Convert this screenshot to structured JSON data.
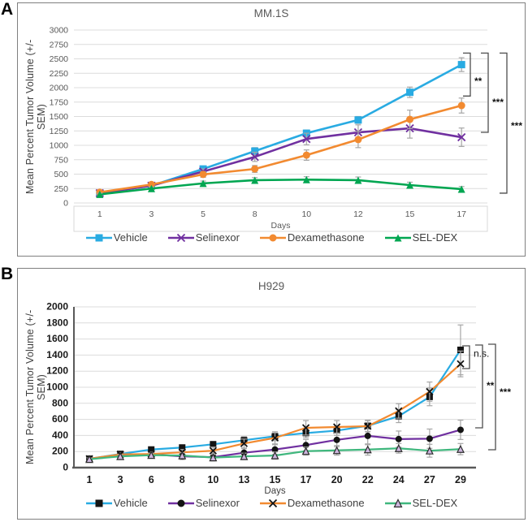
{
  "figure": {
    "panel_labels": [
      "A",
      "B"
    ]
  },
  "colors": {
    "vehicle_blue": "#29abe2",
    "selinexor_purple": "#7030a0",
    "dexamethasone_orange": "#f28a30",
    "seldex_green_a": "#00a651",
    "seldex_green_b": "#3fb77d",
    "black_marker": "#141414",
    "open_triangle_fill": "#cdb6de",
    "gridline": "#dcdcdc",
    "axis_dark": "#595959",
    "error_bar": "#a6a6a6",
    "bracket": "#4d4d4d"
  },
  "chart_data": [
    {
      "type": "line",
      "panel_label": "A",
      "title": "MM.1S",
      "xlabel": "Days",
      "ylabel": "Mean Percent Tumor Volume (+/- SEM)",
      "x_categories": [
        1,
        3,
        5,
        8,
        10,
        12,
        15,
        17
      ],
      "ylim": [
        0,
        3000
      ],
      "ytick_step": 250,
      "grid": true,
      "legend_position": "bottom",
      "series": [
        {
          "name": "Vehicle",
          "line_color": "#29abe2",
          "marker": "square",
          "marker_color": "#29abe2",
          "values": [
            170,
            300,
            590,
            900,
            1210,
            1440,
            1920,
            2400
          ],
          "sem": [
            25,
            25,
            45,
            60,
            55,
            60,
            90,
            120
          ]
        },
        {
          "name": "Selinexor",
          "line_color": "#7030a0",
          "marker": "x",
          "marker_color": "#7030a0",
          "values": [
            170,
            300,
            545,
            800,
            1110,
            1225,
            1295,
            1140
          ],
          "sem": [
            25,
            25,
            45,
            80,
            100,
            130,
            170,
            160
          ]
        },
        {
          "name": "Dexamethasone",
          "line_color": "#f28a30",
          "marker": "circle",
          "marker_color": "#f28a30",
          "values": [
            185,
            320,
            495,
            590,
            830,
            1100,
            1450,
            1690
          ],
          "sem": [
            25,
            25,
            50,
            60,
            90,
            140,
            160,
            130
          ]
        },
        {
          "name": "SEL-DEX",
          "line_color": "#00a651",
          "marker": "triangle",
          "marker_color": "#00a651",
          "values": [
            150,
            250,
            340,
            395,
            405,
            395,
            310,
            240
          ],
          "sem": [
            20,
            25,
            40,
            45,
            50,
            55,
            50,
            45
          ]
        }
      ],
      "significance": [
        {
          "label": "**",
          "between": [
            "Vehicle",
            "Dexamethasone"
          ],
          "bracket_x": 557,
          "top_value": 2600,
          "bottom_value": 1855,
          "label_value": 2110
        },
        {
          "label": "***",
          "between": [
            "Vehicle",
            "Selinexor"
          ],
          "bracket_x": 579,
          "top_value": 2600,
          "bottom_value": 1225,
          "label_value": 1745
        },
        {
          "label": "***",
          "between": [
            "Vehicle",
            "SEL-DEX"
          ],
          "bracket_x": 602,
          "top_value": 2600,
          "bottom_value": 170,
          "label_value": 1340
        }
      ]
    },
    {
      "type": "line",
      "panel_label": "B",
      "title": "H929",
      "xlabel": "Days",
      "ylabel": "Mean Percent Tumor Volume (+/- SEM)",
      "x_categories": [
        1,
        3,
        6,
        8,
        10,
        13,
        15,
        17,
        20,
        22,
        24,
        27,
        29
      ],
      "ylim": [
        0,
        2000
      ],
      "ytick_step": 200,
      "grid": true,
      "legend_position": "bottom",
      "series": [
        {
          "name": "Vehicle",
          "line_color": "#29abe2",
          "marker": "square",
          "marker_color": "#141414",
          "values": [
            110,
            170,
            225,
            250,
            290,
            340,
            390,
            430,
            460,
            520,
            640,
            880,
            1465
          ],
          "sem": [
            15,
            25,
            30,
            30,
            35,
            45,
            55,
            60,
            60,
            70,
            80,
            110,
            310
          ]
        },
        {
          "name": "Selinexor",
          "line_color": "#7030a0",
          "marker": "circle",
          "marker_color": "#141414",
          "values": [
            110,
            150,
            165,
            140,
            130,
            185,
            225,
            280,
            345,
            395,
            355,
            360,
            470
          ],
          "sem": [
            15,
            20,
            25,
            40,
            45,
            50,
            60,
            70,
            85,
            110,
            100,
            120,
            120
          ]
        },
        {
          "name": "Dexamethasone",
          "line_color": "#f28a30",
          "marker": "x",
          "marker_color": "#141414",
          "values": [
            110,
            165,
            170,
            190,
            210,
            300,
            370,
            495,
            505,
            515,
            705,
            945,
            1290
          ],
          "sem": [
            15,
            20,
            25,
            35,
            45,
            55,
            75,
            90,
            80,
            70,
            90,
            120,
            160
          ]
        },
        {
          "name": "SEL-DEX",
          "line_color": "#3fb77d",
          "marker": "triangle-open",
          "marker_color": "#2b2b2b",
          "values": [
            105,
            140,
            155,
            150,
            125,
            140,
            150,
            205,
            215,
            225,
            240,
            210,
            230
          ],
          "sem": [
            15,
            20,
            25,
            35,
            40,
            40,
            45,
            50,
            60,
            70,
            60,
            80,
            70
          ]
        }
      ],
      "significance": [
        {
          "label": "n.s.",
          "between": [
            "Vehicle",
            "Dexamethasone"
          ],
          "bracket_x": 556,
          "top_value": 1515,
          "bottom_value": 1232,
          "label_value": 1420
        },
        {
          "label": "**",
          "between": [
            "Vehicle",
            "Selinexor"
          ],
          "bracket_x": 572,
          "top_value": 1525,
          "bottom_value": 495,
          "label_value": 1020
        },
        {
          "label": "***",
          "between": [
            "Vehicle",
            "SEL-DEX"
          ],
          "bracket_x": 588,
          "top_value": 1535,
          "bottom_value": 222,
          "label_value": 940
        }
      ]
    }
  ]
}
